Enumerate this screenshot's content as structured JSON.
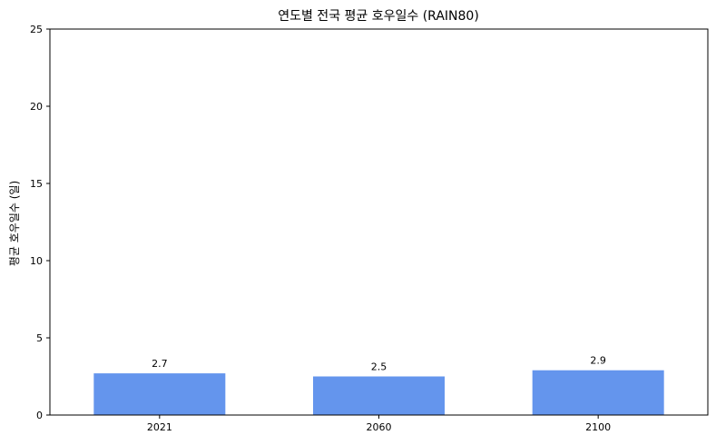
{
  "chart_data": {
    "type": "bar",
    "title": "연도별 전국 평균 호우일수 (RAIN80)",
    "xlabel": "",
    "ylabel": "평균 호우일수 (일)",
    "categories": [
      "2021",
      "2060",
      "2100"
    ],
    "values": [
      2.7,
      2.5,
      2.9
    ],
    "data_labels": [
      "2.7",
      "2.5",
      "2.9"
    ],
    "ylim": [
      0,
      25
    ],
    "yticks": [
      0,
      5,
      10,
      15,
      20,
      25
    ],
    "grid": false,
    "bar_color": "#6495ED"
  }
}
